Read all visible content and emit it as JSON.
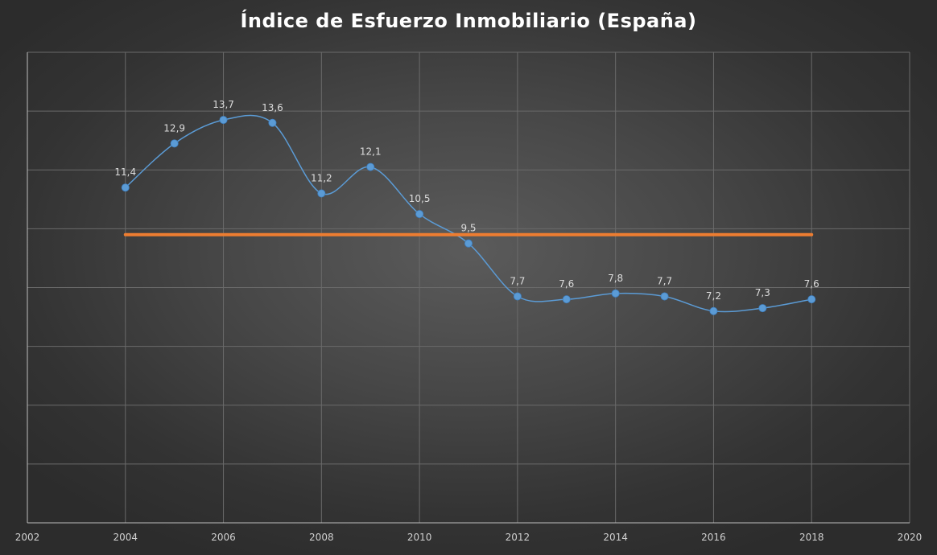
{
  "chart_data": {
    "type": "scatter",
    "title": "Índice de Esfuerzo Inmobiliario (España)",
    "xlabel": "",
    "ylabel": "",
    "xlim": [
      2002,
      2020
    ],
    "ylim": [
      0,
      16
    ],
    "x_ticks": [
      "2002",
      "2004",
      "2006",
      "2008",
      "2010",
      "2012",
      "2014",
      "2016",
      "2018",
      "2020"
    ],
    "y_gridlines": [
      2,
      4,
      6,
      8,
      10,
      12,
      14,
      16
    ],
    "grid": true,
    "legend": "none",
    "series": [
      {
        "style": "smooth-line-with-markers",
        "color": "#5b9bd5",
        "x": [
          2004,
          2005,
          2006,
          2007,
          2008,
          2009,
          2010,
          2011,
          2012,
          2013,
          2014,
          2015,
          2016,
          2017,
          2018
        ],
        "y": [
          11.4,
          12.9,
          13.7,
          13.6,
          11.2,
          12.1,
          10.5,
          9.5,
          7.7,
          7.6,
          7.8,
          7.7,
          7.2,
          7.3,
          7.6
        ],
        "labels": [
          "11,4",
          "12,9",
          "13,7",
          "13,6",
          "11,2",
          "12,1",
          "10,5",
          "9,5",
          "7,7",
          "7,6",
          "7,8",
          "7,7",
          "7,2",
          "7,3",
          "7,6"
        ]
      },
      {
        "style": "line",
        "color": "#ed7d31",
        "x": [
          2004,
          2018
        ],
        "y": [
          9.8,
          9.8
        ]
      }
    ]
  }
}
